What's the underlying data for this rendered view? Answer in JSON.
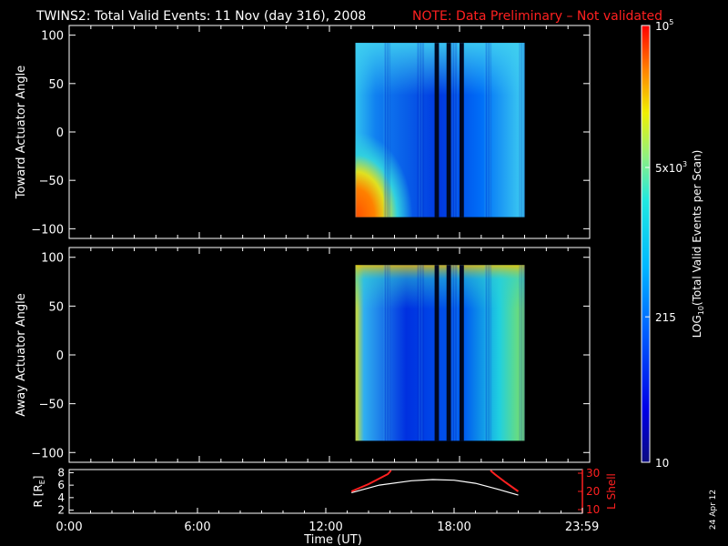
{
  "header": {
    "title": "TWINS2: Total Valid Events: 11 Nov (day 316), 2008",
    "note": "NOTE: Data Preliminary – Not validated"
  },
  "side_date": "24 Apr 12",
  "colors": {
    "background": "#000000",
    "axes": "#ffffff",
    "note": "#ff2020",
    "lshell": "#ff2020",
    "radius": "#ffffff"
  },
  "chart_data": [
    {
      "type": "heatmap",
      "name": "toward",
      "ylabel": "Toward Actuator Angle",
      "xlim": [
        0,
        24
      ],
      "ylim": [
        -110,
        110
      ],
      "yticks": [
        100,
        50,
        0,
        -50,
        -100
      ],
      "data_x": [
        13.2,
        21.0
      ],
      "data_y": [
        -88,
        92
      ],
      "gaps": [
        [
          16.85,
          17.05
        ],
        [
          17.4,
          17.6
        ],
        [
          18.0,
          18.2
        ]
      ]
    },
    {
      "type": "heatmap",
      "name": "away",
      "ylabel": "Away Actuator Angle",
      "xlim": [
        0,
        24
      ],
      "ylim": [
        -110,
        110
      ],
      "yticks": [
        100,
        50,
        0,
        -50,
        -100
      ],
      "data_x": [
        13.2,
        21.0
      ],
      "data_y": [
        -88,
        92
      ],
      "gaps": [
        [
          16.85,
          17.05
        ],
        [
          17.4,
          17.6
        ],
        [
          18.0,
          18.2
        ]
      ]
    },
    {
      "type": "line",
      "name": "orbit",
      "xlabel": "Time (UT)",
      "ylabel_left": "R [R",
      "ylabel_left_sub": "E",
      "ylabel_left_end": "]",
      "ylabel_right": "L Shell",
      "xlim": [
        0,
        24
      ],
      "ylim_left": [
        1.5,
        8.5
      ],
      "ylim_right": [
        8,
        32
      ],
      "yticks_left": [
        8,
        6,
        4,
        2
      ],
      "yticks_right": [
        30,
        20,
        10
      ],
      "xticks": [
        0,
        6,
        12,
        18,
        23.983
      ],
      "xtick_labels": [
        "0:00",
        "6:00",
        "12:00",
        "18:00",
        "23:59"
      ],
      "series": [
        {
          "axis": "left",
          "color": "#ffffff",
          "x": [
            13.2,
            14.5,
            16.0,
            17.0,
            18.0,
            19.0,
            20.0,
            21.0
          ],
          "y": [
            4.8,
            6.0,
            6.7,
            6.9,
            6.8,
            6.3,
            5.4,
            4.4
          ]
        },
        {
          "axis": "right",
          "color": "#ff2020",
          "x": [
            13.2,
            14.0,
            14.9,
            15.05
          ],
          "y": [
            20,
            24,
            29.5,
            31.5
          ]
        },
        {
          "axis": "right",
          "color": "#ff2020",
          "x": [
            19.7,
            19.9,
            20.4,
            21.0
          ],
          "y": [
            31.5,
            29.5,
            25,
            20
          ]
        }
      ]
    }
  ],
  "colorbar": {
    "label": "LOG",
    "label_sub": "10",
    "label_end": "(Total Valid Events per Scan)",
    "ticks": [
      {
        "base": "10",
        "exp": "",
        "frac": 0.0
      },
      {
        "base": "215",
        "exp": "",
        "frac": 0.333
      },
      {
        "base": "5x10",
        "exp": "3",
        "frac": 0.675
      },
      {
        "base": "10",
        "exp": "5",
        "frac": 1.0
      }
    ]
  }
}
